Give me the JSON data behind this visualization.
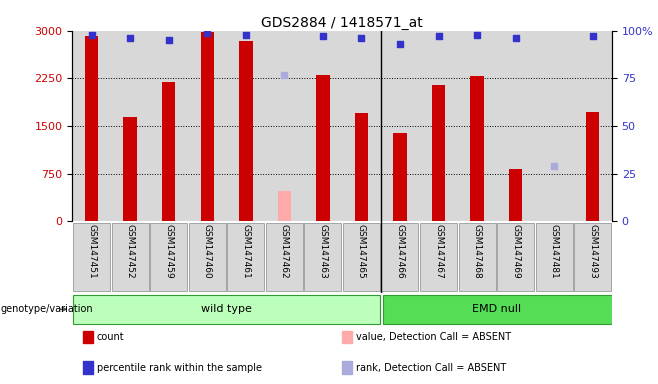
{
  "title": "GDS2884 / 1418571_at",
  "samples": [
    "GSM147451",
    "GSM147452",
    "GSM147459",
    "GSM147460",
    "GSM147461",
    "GSM147462",
    "GSM147463",
    "GSM147465",
    "GSM147466",
    "GSM147467",
    "GSM147468",
    "GSM147469",
    "GSM147481",
    "GSM147493"
  ],
  "counts": [
    2920,
    1650,
    2200,
    2980,
    2840,
    null,
    2310,
    1700,
    1390,
    2150,
    2280,
    820,
    null,
    1720
  ],
  "counts_absent": [
    null,
    null,
    null,
    null,
    null,
    480,
    null,
    null,
    null,
    null,
    null,
    null,
    null,
    null
  ],
  "percentile_ranks": [
    98,
    96,
    95,
    99,
    98,
    null,
    97,
    96,
    93,
    97,
    98,
    96,
    null,
    97
  ],
  "percentile_ranks_absent": [
    null,
    null,
    null,
    null,
    null,
    77,
    null,
    null,
    null,
    null,
    null,
    null,
    29,
    null
  ],
  "wild_type_count": 8,
  "emd_null_count": 6,
  "ylim_left": [
    0,
    3000
  ],
  "ylim_right": [
    0,
    100
  ],
  "yticks_left": [
    0,
    750,
    1500,
    2250,
    3000
  ],
  "yticks_right": [
    0,
    25,
    50,
    75,
    100
  ],
  "bar_color_present": "#cc0000",
  "bar_color_absent": "#ffaaaa",
  "dot_color_present": "#3333cc",
  "dot_color_absent": "#aaaadd",
  "wild_type_label": "wild type",
  "emd_null_label": "EMD null",
  "genotype_label": "genotype/variation",
  "group_color_wt": "#bbffbb",
  "group_color_emd": "#55dd55",
  "legend_items": [
    {
      "label": "count",
      "color": "#cc0000"
    },
    {
      "label": "percentile rank within the sample",
      "color": "#3333cc"
    },
    {
      "label": "value, Detection Call = ABSENT",
      "color": "#ffaaaa"
    },
    {
      "label": "rank, Detection Call = ABSENT",
      "color": "#aaaadd"
    }
  ],
  "col_bg_color": "#d8d8d8",
  "plot_bg": "#ffffff",
  "bar_width": 0.35
}
